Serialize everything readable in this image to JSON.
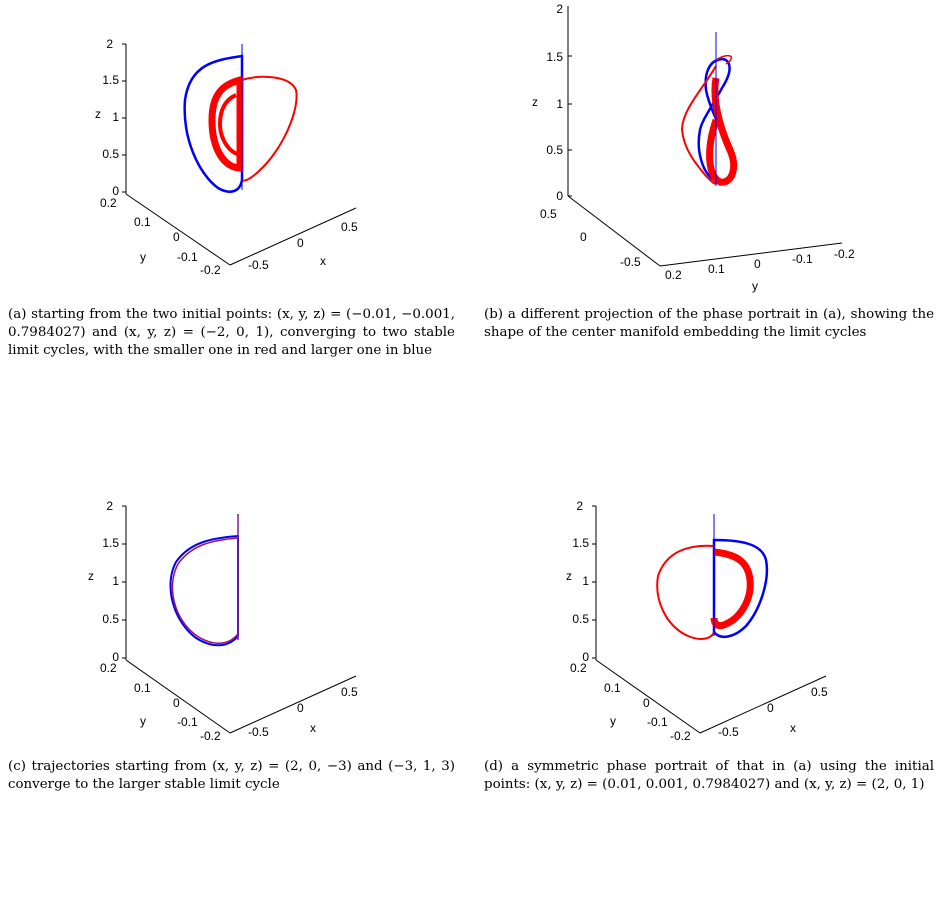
{
  "panels": [
    {
      "id": "a",
      "caption": "(a) starting from the two initial points: (x, y, z) = (−0.01, −0.001, 0.7984027) and (x, y, z) = (−2, 0, 1), converging to two stable limit cycles, with the smaller one in red and larger one in blue",
      "z_ticks": [
        "2",
        "1.5",
        "1",
        "0.5",
        "0"
      ],
      "y_ticks": [
        "0.2",
        "0.1",
        "0",
        "-0.1",
        "-0.2"
      ],
      "x_ticks": [
        "-0.5",
        "0",
        "0.5"
      ],
      "xlabel": "x",
      "ylabel": "y",
      "zlabel": "z"
    },
    {
      "id": "b",
      "caption": "(b) a different projection of the phase portrait in (a), showing the shape of the center manifold embedding the limit cycles",
      "z_ticks": [
        "2",
        "1.5",
        "1",
        "0.5",
        "0"
      ],
      "y_ticks": [
        "0.2",
        "0.1",
        "0",
        "-0.1",
        "-0.2"
      ],
      "x_ticks": [
        "0.5",
        "0",
        "-0.5"
      ],
      "xlabel": "y",
      "ylabel": "",
      "zlabel": "z"
    },
    {
      "id": "c",
      "caption": "(c) trajectories starting from (x, y, z) = (2, 0, −3) and (−3, 1, 3) converge to the larger stable limit cycle",
      "z_ticks": [
        "2",
        "1.5",
        "1",
        "0.5",
        "0"
      ],
      "y_ticks": [
        "0.2",
        "0.1",
        "0",
        "-0.1",
        "-0.2"
      ],
      "x_ticks": [
        "-0.5",
        "0",
        "0.5"
      ],
      "xlabel": "x",
      "ylabel": "y",
      "zlabel": "z"
    },
    {
      "id": "d",
      "caption": "(d) a symmetric phase portrait of that in (a) using the initial points: (x, y, z) = (0.01, 0.001, 0.7984027) and (x, y, z) = (2, 0, 1)",
      "z_ticks": [
        "2",
        "1.5",
        "1",
        "0.5",
        "0"
      ],
      "y_ticks": [
        "0.2",
        "0.1",
        "0",
        "-0.1",
        "-0.2"
      ],
      "x_ticks": [
        "-0.5",
        "0",
        "0.5"
      ],
      "xlabel": "x",
      "ylabel": "y",
      "zlabel": "z"
    }
  ],
  "colors": {
    "small_cycle": "#ff0000",
    "large_cycle": "#0000ff",
    "purple_cycle": "#7a1fa0",
    "axis": "#000000"
  }
}
